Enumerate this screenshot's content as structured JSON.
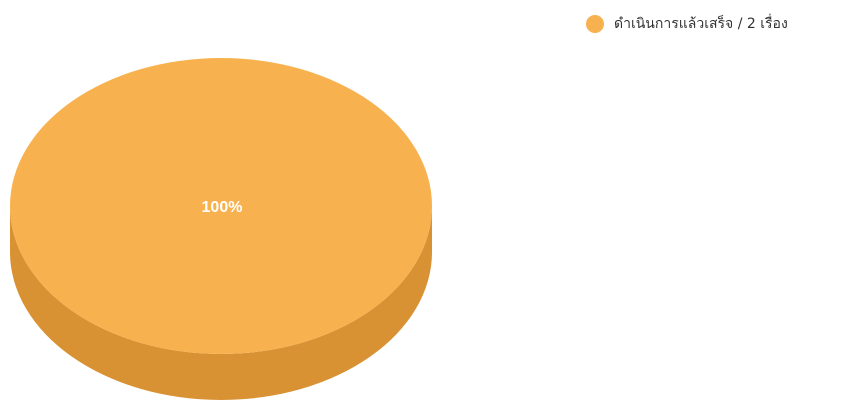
{
  "chart_data": {
    "type": "pie",
    "style": "3d",
    "slices": [
      {
        "label": "ดำเนินการแล้วเสร็จ / 2 เรื่อง",
        "value": 2,
        "percent_label": "100%",
        "color": "#F7B24F",
        "side_color": "#D99233"
      }
    ],
    "legend_position": "top-right"
  }
}
